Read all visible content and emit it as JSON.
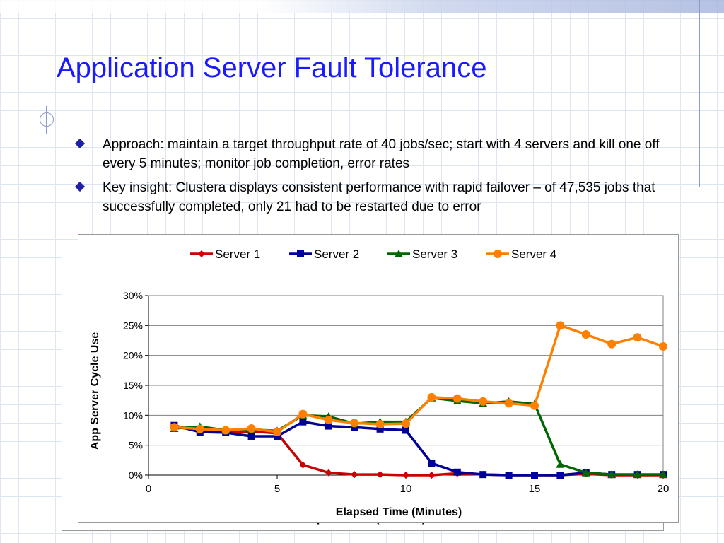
{
  "slide": {
    "title": "Application Server Fault Tolerance",
    "bullets": [
      "Approach: maintain a target throughput rate of 40 jobs/sec; start with 4 servers and kill one off every 5 minutes; monitor job completion, error rates",
      "Key insight: Clustera displays consistent performance with rapid failover – of 47,535 jobs that successfully completed, only 21 had to be restarted due to error"
    ]
  },
  "chart_data": {
    "type": "line",
    "title": "",
    "xlabel": "Elapsed Time (Minutes)",
    "ylabel": "App Server Cycle Use",
    "xlim": [
      0,
      20
    ],
    "ylim": [
      0,
      30
    ],
    "x_ticks": [
      0,
      5,
      10,
      15,
      20
    ],
    "y_ticks": [
      "0%",
      "5%",
      "10%",
      "15%",
      "20%",
      "25%",
      "30%"
    ],
    "y_tick_values": [
      0,
      5,
      10,
      15,
      20,
      25,
      30
    ],
    "grid": "horizontal",
    "legend_position": "top",
    "x": [
      1,
      2,
      3,
      4,
      5,
      6,
      7,
      8,
      9,
      10,
      11,
      12,
      13,
      14,
      15,
      16,
      17,
      18,
      19,
      20
    ],
    "series": [
      {
        "name": "Server 1",
        "color": "#cc0000",
        "marker": "diamond",
        "values": [
          8.0,
          7.6,
          7.3,
          7.3,
          7.0,
          1.7,
          0.4,
          0.1,
          0.1,
          0.0,
          0.0,
          0.3,
          0.1,
          0.0,
          0.0,
          0.0,
          0.2,
          0.0,
          0.0,
          0.0
        ]
      },
      {
        "name": "Server 2",
        "color": "#000099",
        "marker": "square",
        "values": [
          8.3,
          7.2,
          7.1,
          6.5,
          6.5,
          8.9,
          8.2,
          8.0,
          7.7,
          7.5,
          2.0,
          0.5,
          0.1,
          0.0,
          0.0,
          0.0,
          0.4,
          0.1,
          0.1,
          0.1
        ]
      },
      {
        "name": "Server 3",
        "color": "#006600",
        "marker": "triangle",
        "values": [
          7.8,
          8.1,
          7.5,
          7.6,
          7.4,
          10.0,
          9.8,
          8.6,
          8.9,
          8.9,
          12.9,
          12.4,
          12.0,
          12.3,
          11.9,
          1.8,
          0.4,
          0.1,
          0.1,
          0.1
        ]
      },
      {
        "name": "Server 4",
        "color": "#ff8000",
        "marker": "circle",
        "values": [
          8.0,
          7.7,
          7.5,
          7.8,
          7.2,
          10.2,
          9.2,
          8.7,
          8.5,
          8.6,
          13.0,
          12.8,
          12.3,
          12.0,
          11.6,
          25.0,
          23.5,
          21.9,
          23.0,
          21.5
        ]
      }
    ]
  }
}
